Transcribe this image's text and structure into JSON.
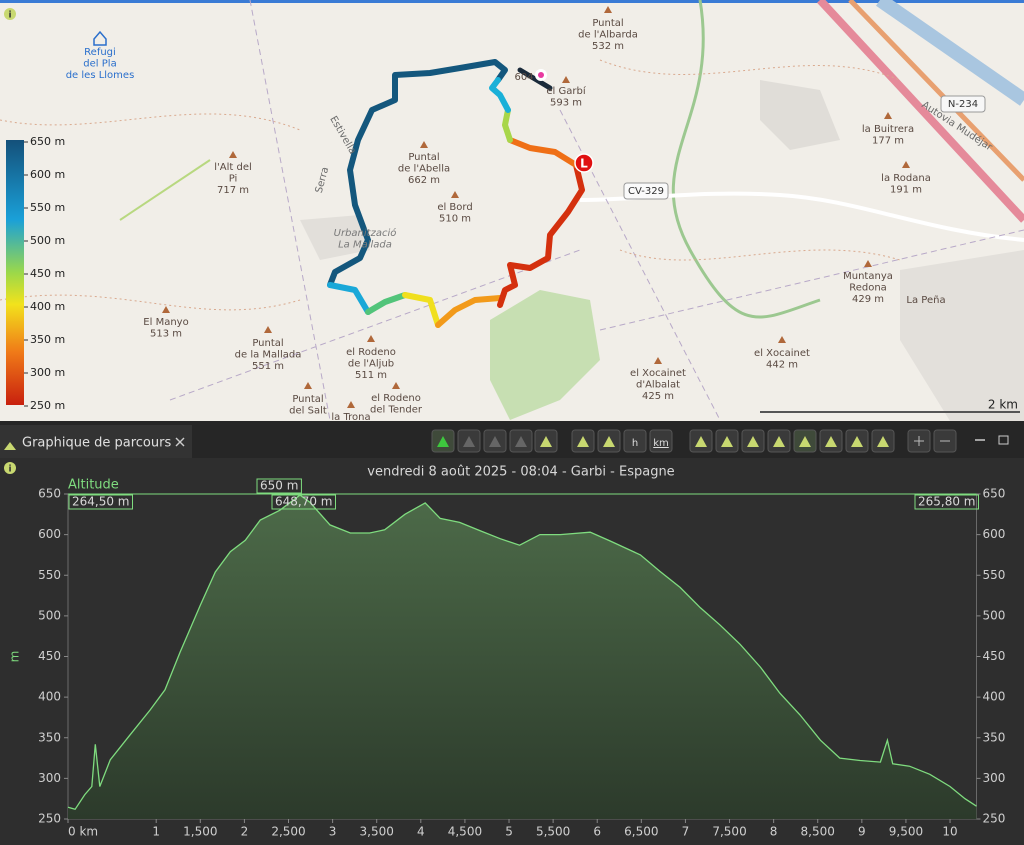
{
  "map": {
    "places": [
      {
        "lines": [
          "Refugi",
          "del Pla",
          "de les Llomes"
        ]
      },
      {
        "lines": [
          "Puntal",
          "de l'Albarda",
          "532 m"
        ]
      },
      {
        "lines": [
          "604"
        ]
      },
      {
        "lines": [
          "el Garbí",
          "593 m"
        ]
      },
      {
        "lines": [
          "la Buitrera",
          "177 m"
        ]
      },
      {
        "lines": [
          "la Rodana",
          "191 m"
        ]
      },
      {
        "lines": [
          "l'Alt del",
          "Pi",
          "717 m"
        ]
      },
      {
        "lines": [
          "Puntal",
          "de l'Abella",
          "662 m"
        ]
      },
      {
        "lines": [
          "el Bord",
          "510 m"
        ]
      },
      {
        "lines": [
          "Urbanització",
          "La Mallada"
        ]
      },
      {
        "lines": [
          "Muntanya",
          "Redona",
          "429 m"
        ]
      },
      {
        "lines": [
          "La Peña"
        ]
      },
      {
        "lines": [
          "El Manyo",
          "513 m"
        ]
      },
      {
        "lines": [
          "Puntal",
          "de la Mallada",
          "551 m"
        ]
      },
      {
        "lines": [
          "el Rodeno",
          "de l'Aljub",
          "511 m"
        ]
      },
      {
        "lines": [
          "el Xocainet",
          "442 m"
        ]
      },
      {
        "lines": [
          "el Xocainet",
          "d'Albalat",
          "425 m"
        ]
      },
      {
        "lines": [
          "Puntal",
          "del Salt"
        ]
      },
      {
        "lines": [
          "la Trona"
        ]
      },
      {
        "lines": [
          "el Rodeno",
          "del Tender"
        ]
      }
    ],
    "roads": [
      "CV-329",
      "N-234",
      "Autovia Mudéjar",
      "Serra",
      "Estivella"
    ],
    "marker": "L",
    "legend": [
      "650 m",
      "600 m",
      "550 m",
      "500 m",
      "450 m",
      "400 m",
      "350 m",
      "300 m",
      "250 m"
    ],
    "scale": "2 km"
  },
  "panel": {
    "tab": "Graphique de parcours",
    "toolbar_labels": [
      "h",
      "km"
    ]
  },
  "chart_data": {
    "type": "line",
    "title": "vendredi 8 août 2025 - 08:04 - Garbi - Espagne",
    "y_label": "m",
    "x": [
      0,
      0.08,
      0.19,
      0.27,
      0.31,
      0.36,
      0.48,
      0.7,
      0.93,
      1.1,
      1.27,
      1.5,
      1.67,
      1.84,
      2.01,
      2.18,
      2.4,
      2.63,
      2.74,
      2.97,
      3.2,
      3.42,
      3.59,
      3.82,
      4.05,
      4.22,
      4.44,
      4.67,
      4.9,
      5.12,
      5.35,
      5.58,
      5.92,
      6.15,
      6.49,
      6.71,
      6.94,
      7.17,
      7.39,
      7.62,
      7.85,
      8.07,
      8.3,
      8.53,
      8.75,
      8.98,
      9.21,
      9.29,
      9.35,
      9.54,
      9.77,
      10.0,
      10.17,
      10.3
    ],
    "series": [
      {
        "name": "Altitude",
        "color": "#7fdc7f",
        "values": [
          264.5,
          262,
          280,
          290,
          342,
          290,
          323,
          353,
          384,
          409,
          455,
          513,
          554,
          579,
          593,
          618,
          630,
          648.7,
          640,
          612,
          602,
          602,
          606,
          625,
          639,
          620,
          615,
          605,
          595,
          587,
          600,
          600,
          603,
          592,
          575,
          555,
          535,
          510,
          489,
          465,
          437,
          405,
          378,
          347,
          325,
          322,
          320,
          347,
          318,
          315,
          305,
          290,
          275,
          265.8
        ]
      }
    ],
    "annotations": [
      {
        "value": 650,
        "label": "650 m"
      },
      {
        "value": 264.5,
        "label": "264,50 m"
      },
      {
        "value": 648.7,
        "label": "648,70 m"
      },
      {
        "value": 265.8,
        "label": "265,80 m"
      }
    ],
    "xlim": [
      0,
      10.3
    ],
    "xticks": [
      {
        "value": 0,
        "label": "0 km"
      },
      1,
      {
        "value": 1.5,
        "label": "1,500"
      },
      2,
      {
        "value": 2.5,
        "label": "2,500"
      },
      3,
      {
        "value": 3.5,
        "label": "3,500"
      },
      4,
      {
        "value": 4.5,
        "label": "4,500"
      },
      5,
      {
        "value": 5.5,
        "label": "5,500"
      },
      6,
      {
        "value": 6.5,
        "label": "6,500"
      },
      7,
      {
        "value": 7.5,
        "label": "7,500"
      },
      8,
      {
        "value": 8.5,
        "label": "8,500"
      },
      9,
      {
        "value": 9.5,
        "label": "9,500"
      },
      10
    ],
    "ylim": [
      250,
      650
    ],
    "yticks": [
      250,
      300,
      350,
      400,
      450,
      500,
      550,
      600,
      650
    ]
  }
}
